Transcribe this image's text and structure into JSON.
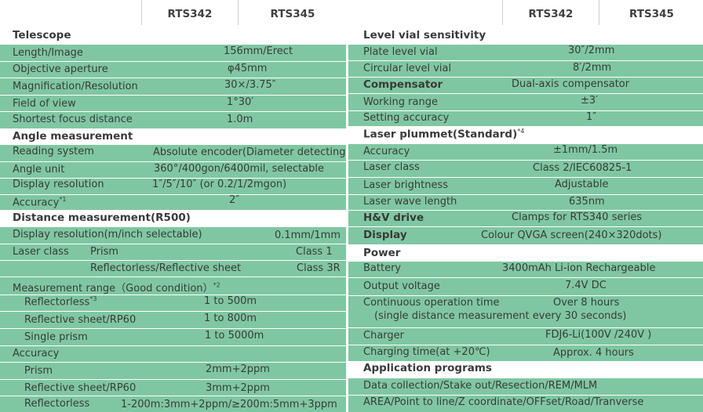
{
  "left": {
    "header": [
      "RTS342",
      "RTS345"
    ],
    "rows": [
      {
        "label": "Telescope",
        "section": true,
        "bg": "white"
      },
      {
        "label": "Length/Image",
        "value": "156mm/Erect",
        "bg": "green"
      },
      {
        "label": "Objective aperture",
        "value": "φ45mm",
        "bg": "green"
      },
      {
        "label": "Magnification/Resolution",
        "value": "30×/3.75″",
        "bg": "green"
      },
      {
        "label": "Field of view",
        "value": "1°30′",
        "bg": "green"
      },
      {
        "label": "Shortest focus distance",
        "value": "1.0m",
        "bg": "green"
      },
      {
        "label": "Angle measurement",
        "section": true,
        "bg": "white"
      },
      {
        "label": "Reading system",
        "value": "Absolute encoder(Diameter detecting)",
        "bg": "green"
      },
      {
        "label": "Angle unit",
        "value": "360°/400gon/6400mil, selectable",
        "bg": "green"
      },
      {
        "label": "Display resolution",
        "value": "1″/5″/10″ (or 0.2/1/2mgon)",
        "bg": "green"
      },
      {
        "label": "Accuracy",
        "sup": "*1",
        "value": "2″",
        "bg": "green"
      },
      {
        "label": "Distance measurement(R500)",
        "section": true,
        "bg": "white"
      },
      {
        "label": "Display resolution(m/inch selectable)",
        "value": "0.1mm/1mm",
        "bg": "green"
      },
      {
        "label": "Laser class",
        "mid": "Prism",
        "value": "Class 1",
        "bg": "green"
      },
      {
        "label": "",
        "mid": "Reflectorless/Reflective sheet",
        "value": "Class 3R",
        "bg": "green"
      },
      {
        "label": "Measurement range（Good condition）",
        "sup": "*2",
        "value": "",
        "bg": "green"
      },
      {
        "label": "Reflectorless",
        "sup": "*3",
        "value": "1 to 500m",
        "bg": "green",
        "indent": true
      },
      {
        "label": "Reflective sheet/RP60",
        "value": "1 to 800m",
        "bg": "green",
        "indent": true
      },
      {
        "label": "Single prism",
        "value": "1 to 5000m",
        "bg": "green",
        "indent": true
      },
      {
        "label": "Accuracy",
        "value": "",
        "bg": "green"
      },
      {
        "label": "Prism",
        "value": "2mm+2ppm",
        "bg": "green",
        "indent": true
      },
      {
        "label": "Reflective sheet/RP60",
        "value": "3mm+2ppm",
        "bg": "green",
        "indent": true
      },
      {
        "label": "Reflectorless",
        "value": "1-200m:3mm+2ppm/≥200m:5mm+3ppm",
        "bg": "green",
        "indent": true
      }
    ]
  },
  "right": {
    "header": [
      "RTS342",
      "RTS345"
    ],
    "rows": [
      {
        "label": "Level vial sensitivity",
        "section": true,
        "bg": "white"
      },
      {
        "label": "Plate level vial",
        "value": "30″/2mm",
        "bg": "green"
      },
      {
        "label": "Circular level vial",
        "value": "8′/2mm",
        "bg": "green"
      },
      {
        "label": "Compensator",
        "section": true,
        "value": "Dual-axis compensator",
        "bg": "green"
      },
      {
        "label": "Working range",
        "value": "±3′",
        "bg": "green"
      },
      {
        "label": "Setting accuracy",
        "value": "1″",
        "bg": "green"
      },
      {
        "label": "Laser plummet(Standard)",
        "sup": "*4",
        "section": true,
        "bg": "white"
      },
      {
        "label": "Accuracy",
        "value": "±1mm/1.5m",
        "bg": "green"
      },
      {
        "label": "Laser class",
        "value": "Class 2/IEC60825-1",
        "bg": "green"
      },
      {
        "label": "Laser brightness",
        "value": "Adjustable",
        "bg": "green"
      },
      {
        "label": "Laser wave length",
        "value": "635nm",
        "bg": "green"
      },
      {
        "label": "H&V drive",
        "section": true,
        "value": "Clamps for RTS340 series",
        "bg": "green"
      },
      {
        "label": "Display",
        "section": true,
        "value": "Colour QVGA screen(240×320dots)",
        "bg": "green"
      },
      {
        "label": "Power",
        "section": true,
        "bg": "white"
      },
      {
        "label": "Battery",
        "value": "3400mAh Li-ion Rechargeable",
        "bg": "green"
      },
      {
        "label": "Output voltage",
        "value": "7.4V DC",
        "bg": "green"
      },
      {
        "label": "Continuous operation time",
        "value": "Over 8 hours",
        "value2": "(single distance measurement every 30 seconds)",
        "bg": "green"
      },
      {
        "label": "Charger",
        "value": "FDJ6-Li(100V /240V )",
        "bg": "green"
      },
      {
        "label": "Charging time(at +20℃)",
        "value": "Approx. 4 hours",
        "bg": "green"
      },
      {
        "label": "Application programs",
        "section": true,
        "bg": "white"
      },
      {
        "label": "Data collection/Stake out/Resection/REM/MLM",
        "bg": "green"
      },
      {
        "label": "AREA/Point to line/Z coordinate/OFFset/Road/Tranverse",
        "bg": "green"
      }
    ]
  }
}
